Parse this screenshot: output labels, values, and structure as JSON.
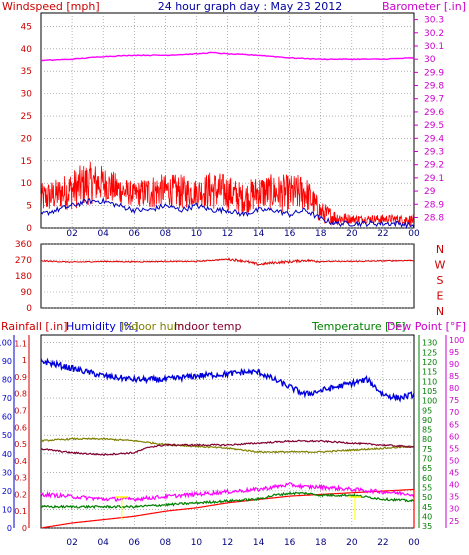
{
  "header": {
    "title": "24 hour graph day : May 23 2012",
    "left_label": "Windspeed [mph]",
    "right_label": "Barometer [.in]"
  },
  "colors": {
    "wind_gust": "#ff0000",
    "wind_avg": "#0000c0",
    "barometer": "#ff00ff",
    "direction": "#e00000",
    "rain": "#ff0000",
    "humidity": "#0000dd",
    "indoor_hum": "#808000",
    "indoor_temp": "#800030",
    "temperature": "#008000",
    "dew_point": "#ff00ff",
    "grid": "#808080",
    "title": "#0000a0",
    "yellow_annot": "#ffff00"
  },
  "chart_data": [
    {
      "type": "line",
      "x_ticks": [
        "02",
        "04",
        "06",
        "08",
        "10",
        "12",
        "14",
        "16",
        "18",
        "20",
        "22",
        "00"
      ],
      "left_axis": {
        "ticks": [
          "0",
          "5",
          "10",
          "15",
          "20",
          "25",
          "30",
          "35",
          "40",
          "45"
        ],
        "ylim": [
          0,
          48
        ]
      },
      "right_axis": {
        "ticks": [
          "28.8",
          "28.9",
          "29",
          "29.1",
          "29.2",
          "29.3",
          "29.4",
          "29.5",
          "29.6",
          "29.7",
          "29.8",
          "29.9",
          "30",
          "30.1",
          "30.2",
          "30.3"
        ],
        "ylim": [
          28.72,
          30.35
        ]
      },
      "grid": true,
      "series": [
        {
          "name": "Windspeed",
          "axis": "left",
          "x_hours": [
            0,
            1,
            2,
            3,
            4,
            5,
            6,
            7,
            8,
            9,
            10,
            11,
            12,
            13,
            14,
            15,
            16,
            17,
            18,
            19,
            20,
            21,
            22,
            23,
            24
          ],
          "gust_low": [
            3,
            4,
            4,
            5,
            6,
            5,
            5,
            4,
            5,
            4,
            5,
            4,
            4,
            3,
            4,
            4,
            3,
            4,
            1,
            0.5,
            1,
            1,
            1,
            1,
            0.5
          ],
          "gust_high": [
            10,
            11,
            13,
            15,
            14,
            12,
            10,
            12,
            12,
            12,
            11,
            13,
            12,
            10,
            12,
            12,
            12,
            12,
            6,
            4,
            3,
            3,
            3,
            3,
            3
          ],
          "avg": [
            3,
            4,
            5,
            6,
            6,
            5,
            4,
            4,
            5,
            4,
            5,
            4,
            4,
            3,
            4,
            4,
            3,
            4,
            2,
            1,
            1,
            1,
            1,
            1,
            0.5
          ]
        },
        {
          "name": "Barometer",
          "axis": "right",
          "x_hours": [
            0,
            2,
            4,
            6,
            8,
            10,
            11,
            12,
            14,
            16,
            18,
            20,
            22,
            24
          ],
          "values": [
            29.99,
            30.0,
            30.02,
            30.03,
            30.03,
            30.04,
            30.05,
            30.04,
            30.03,
            30.01,
            30.0,
            30.0,
            30.0,
            30.01
          ]
        }
      ]
    },
    {
      "type": "line",
      "left_axis": {
        "ticks": [
          "0",
          "90",
          "180",
          "270",
          "360"
        ],
        "ylim": [
          0,
          360
        ]
      },
      "right_labels": [
        "N",
        "W",
        "S",
        "E",
        "N"
      ],
      "series": [
        {
          "name": "Wind direction",
          "x_hours": [
            0,
            2,
            4,
            6,
            8,
            10,
            12,
            13,
            14,
            15,
            16,
            17,
            18,
            20,
            22,
            24
          ],
          "values": [
            265,
            258,
            262,
            260,
            262,
            262,
            275,
            265,
            245,
            255,
            260,
            268,
            262,
            262,
            265,
            268
          ]
        }
      ]
    },
    {
      "type": "line",
      "legend": [
        "Rainfall [.in]",
        "Humidity [%]",
        "Indoor hum",
        "Indoor temp",
        "Temperature [°F]",
        "Dew Point [°F]"
      ],
      "axes": {
        "rain": {
          "ticks": [
            "0",
            "0.1",
            "0.2",
            "0.3",
            "0.4",
            "0.5",
            "0.6",
            "0.7",
            "0.8",
            "0.9",
            "1",
            "1.1"
          ],
          "ylim": [
            0,
            1.15
          ]
        },
        "humidity": {
          "ticks": [
            "0",
            "10",
            "20",
            "30",
            "40",
            "50",
            "60",
            "70",
            "80",
            "90",
            "100"
          ],
          "ylim": [
            0,
            104
          ]
        },
        "temperature": {
          "ticks": [
            "35",
            "40",
            "45",
            "50",
            "55",
            "60",
            "65",
            "70",
            "75",
            "80",
            "85",
            "90",
            "95",
            "100",
            "105",
            "110",
            "115",
            "120",
            "125",
            "130"
          ],
          "ylim": [
            34,
            134
          ]
        },
        "dew_point": {
          "ticks": [
            "25",
            "30",
            "35",
            "40",
            "45",
            "50",
            "55",
            "60",
            "65",
            "70",
            "75",
            "80",
            "85",
            "90",
            "95",
            "100"
          ],
          "ylim": [
            22,
            102
          ]
        }
      },
      "series": [
        {
          "name": "Rainfall",
          "axis": "rain",
          "x_hours": [
            0,
            2,
            4,
            6,
            8,
            10,
            12,
            14,
            16,
            18,
            20,
            22,
            24
          ],
          "values": [
            0,
            0.03,
            0.05,
            0.07,
            0.1,
            0.12,
            0.15,
            0.17,
            0.19,
            0.2,
            0.21,
            0.22,
            0.23
          ]
        },
        {
          "name": "Humidity",
          "axis": "humidity",
          "x_hours": [
            0,
            1,
            2,
            3,
            4,
            6,
            8,
            10,
            12,
            13,
            14,
            15,
            16,
            17,
            18,
            19,
            20,
            21,
            22,
            23,
            24
          ],
          "values": [
            90,
            88,
            86,
            84,
            82,
            80,
            80,
            82,
            83,
            84,
            84,
            80,
            76,
            72,
            74,
            76,
            78,
            80,
            72,
            70,
            72
          ]
        },
        {
          "name": "Indoor hum",
          "axis": "humidity",
          "x_hours": [
            0,
            2,
            4,
            6,
            8,
            10,
            12,
            14,
            16,
            18,
            20,
            22,
            24
          ],
          "values": [
            47,
            48,
            48,
            47,
            45,
            44,
            43,
            41,
            41,
            41,
            42,
            43,
            44
          ]
        },
        {
          "name": "Indoor temp",
          "axis": "temperature",
          "x_hours": [
            0,
            2,
            4,
            6,
            7,
            8,
            10,
            12,
            14,
            16,
            18,
            20,
            22,
            24
          ],
          "values": [
            75,
            73,
            72,
            73,
            76,
            77,
            77,
            77,
            78,
            79,
            79,
            78,
            77,
            76
          ]
        },
        {
          "name": "Temperature",
          "axis": "temperature",
          "x_hours": [
            0,
            2,
            4,
            6,
            8,
            10,
            12,
            14,
            15,
            16,
            17,
            18,
            20,
            22,
            24
          ],
          "values": [
            45,
            45,
            45,
            45,
            46,
            47,
            48,
            49,
            51,
            52,
            52,
            51,
            51,
            49,
            48
          ]
        },
        {
          "name": "Dew Point",
          "axis": "dew_point",
          "x_hours": [
            0,
            2,
            4,
            6,
            8,
            10,
            12,
            14,
            15,
            16,
            17,
            18,
            20,
            22,
            24
          ],
          "values": [
            36,
            35,
            34,
            34,
            35,
            36,
            37,
            38,
            39,
            40,
            39,
            39,
            38,
            37,
            36
          ]
        }
      ]
    }
  ]
}
